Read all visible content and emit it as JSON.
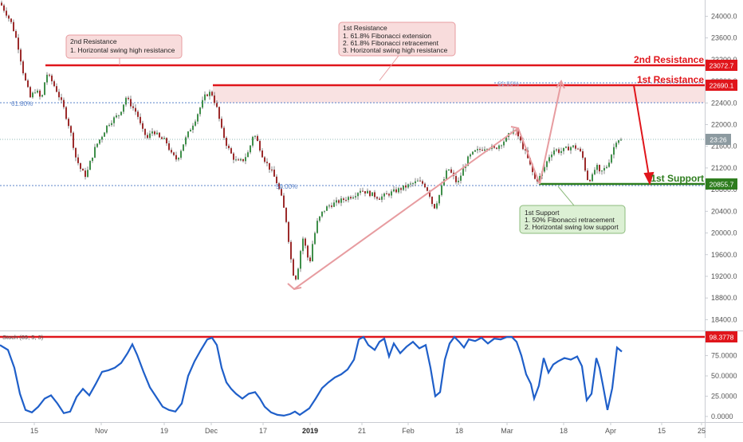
{
  "chart_data": {
    "type": "candlestick",
    "price_axis": {
      "ylim": [
        18200,
        24300
      ],
      "ticks": [
        18400,
        18800,
        19200,
        19600,
        20000,
        20400,
        20800,
        21200,
        21600,
        22000,
        22400,
        22800,
        23200,
        23600,
        24000
      ],
      "tick_labels": [
        "18400.0",
        "18800.0",
        "19200.0",
        "19600.0",
        "20000.0",
        "20400.0",
        "20800.0",
        "21200.0",
        "21600.0",
        "22000.0",
        "22400.0",
        "22800.0",
        "23200.0",
        "23600.0",
        "24000.0"
      ]
    },
    "x_axis": {
      "ticks": [
        {
          "label": "15",
          "bold": false
        },
        {
          "label": "Nov",
          "bold": false
        },
        {
          "label": "19",
          "bold": false
        },
        {
          "label": "Dec",
          "bold": false
        },
        {
          "label": "17",
          "bold": false
        },
        {
          "label": "2019",
          "bold": true
        },
        {
          "label": "21",
          "bold": false
        },
        {
          "label": "Feb",
          "bold": false
        },
        {
          "label": "18",
          "bold": false
        },
        {
          "label": "Mar",
          "bold": false
        },
        {
          "label": "18",
          "bold": false
        },
        {
          "label": "Apr",
          "bold": false
        },
        {
          "label": "15",
          "bold": false
        },
        {
          "label": "25",
          "bold": false
        }
      ]
    },
    "price_path": [
      [
        0,
        24250
      ],
      [
        8,
        24050
      ],
      [
        15,
        23850
      ],
      [
        22,
        23500
      ],
      [
        30,
        22900
      ],
      [
        38,
        22500
      ],
      [
        45,
        22650
      ],
      [
        52,
        22450
      ],
      [
        58,
        22950
      ],
      [
        65,
        22800
      ],
      [
        72,
        22600
      ],
      [
        80,
        22300
      ],
      [
        88,
        21900
      ],
      [
        95,
        21400
      ],
      [
        102,
        21150
      ],
      [
        108,
        21050
      ],
      [
        113,
        21300
      ],
      [
        120,
        21600
      ],
      [
        128,
        21800
      ],
      [
        135,
        22000
      ],
      [
        142,
        22100
      ],
      [
        150,
        22200
      ],
      [
        158,
        22500
      ],
      [
        165,
        22350
      ],
      [
        172,
        22200
      ],
      [
        178,
        21900
      ],
      [
        185,
        21750
      ],
      [
        192,
        21900
      ],
      [
        200,
        21750
      ],
      [
        208,
        21700
      ],
      [
        215,
        21450
      ],
      [
        222,
        21350
      ],
      [
        230,
        21650
      ],
      [
        238,
        21900
      ],
      [
        245,
        22100
      ],
      [
        252,
        22350
      ],
      [
        258,
        22550
      ],
      [
        265,
        22600
      ],
      [
        272,
        22300
      ],
      [
        278,
        21900
      ],
      [
        285,
        21600
      ],
      [
        292,
        21400
      ],
      [
        298,
        21300
      ],
      [
        305,
        21350
      ],
      [
        312,
        21500
      ],
      [
        318,
        21850
      ],
      [
        324,
        21650
      ],
      [
        330,
        21400
      ],
      [
        336,
        21250
      ],
      [
        342,
        21100
      ],
      [
        348,
        20900
      ],
      [
        354,
        20600
      ],
      [
        360,
        20150
      ],
      [
        364,
        19600
      ],
      [
        368,
        19250
      ],
      [
        372,
        19150
      ],
      [
        376,
        19600
      ],
      [
        380,
        19900
      ],
      [
        384,
        19700
      ],
      [
        388,
        19400
      ],
      [
        392,
        19800
      ],
      [
        398,
        20200
      ],
      [
        405,
        20400
      ],
      [
        412,
        20500
      ],
      [
        420,
        20550
      ],
      [
        428,
        20600
      ],
      [
        436,
        20650
      ],
      [
        444,
        20700
      ],
      [
        452,
        20800
      ],
      [
        460,
        20750
      ],
      [
        468,
        20700
      ],
      [
        476,
        20650
      ],
      [
        484,
        20700
      ],
      [
        492,
        20750
      ],
      [
        500,
        20800
      ],
      [
        508,
        20850
      ],
      [
        516,
        20900
      ],
      [
        524,
        20950
      ],
      [
        532,
        20900
      ],
      [
        538,
        20750
      ],
      [
        544,
        20450
      ],
      [
        550,
        20650
      ],
      [
        556,
        20950
      ],
      [
        562,
        21200
      ],
      [
        568,
        21050
      ],
      [
        574,
        20900
      ],
      [
        580,
        21150
      ],
      [
        588,
        21400
      ],
      [
        596,
        21500
      ],
      [
        604,
        21550
      ],
      [
        612,
        21600
      ],
      [
        620,
        21550
      ],
      [
        628,
        21650
      ],
      [
        636,
        21750
      ],
      [
        642,
        21900
      ],
      [
        648,
        21850
      ],
      [
        654,
        21650
      ],
      [
        660,
        21450
      ],
      [
        666,
        21200
      ],
      [
        672,
        20950
      ],
      [
        678,
        21050
      ],
      [
        684,
        21250
      ],
      [
        690,
        21450
      ],
      [
        696,
        21550
      ],
      [
        702,
        21500
      ],
      [
        710,
        21550
      ],
      [
        718,
        21600
      ],
      [
        726,
        21550
      ],
      [
        732,
        21350
      ],
      [
        736,
        21000
      ],
      [
        742,
        21000
      ],
      [
        748,
        21250
      ],
      [
        752,
        21100
      ],
      [
        756,
        21150
      ],
      [
        762,
        21250
      ],
      [
        768,
        21500
      ],
      [
        774,
        21750
      ],
      [
        780,
        21700
      ]
    ],
    "annotations": {
      "second_resistance": {
        "label": "2nd Resistance",
        "price_tag": "23072.7",
        "box": [
          "2nd Resistance",
          "1. Horizontal swing high resistance"
        ]
      },
      "first_resistance": {
        "label": "1st Resistance",
        "price_tag": "22690.1",
        "box": [
          "1st Resistance",
          "1. 61.8% Fibonacci extension",
          "2. 61.8% Fibonacci retracement",
          "3. Horizontal swing high resistance"
        ]
      },
      "first_support": {
        "label": "1st Support",
        "price_tag": "20855.7",
        "box": [
          "1st Support",
          "1. 50% Fibonacci retracement",
          "2. Horizontal swing low support"
        ]
      },
      "fib_labels": [
        "61.80%",
        "61.80%",
        "50.00%"
      ],
      "current_price_tag": "23:26"
    },
    "oscillator": {
      "label": "Stoch (89, 5, 3)",
      "ylim": [
        -5,
        105
      ],
      "ticks": [
        0,
        25,
        50,
        75
      ],
      "tick_labels": [
        "0.0000",
        "25.0000",
        "50.0000",
        "75.0000"
      ],
      "level_tag": "98.3778",
      "series": [
        [
          0,
          88
        ],
        [
          10,
          82
        ],
        [
          18,
          60
        ],
        [
          25,
          28
        ],
        [
          32,
          8
        ],
        [
          40,
          5
        ],
        [
          48,
          12
        ],
        [
          56,
          22
        ],
        [
          64,
          26
        ],
        [
          72,
          16
        ],
        [
          80,
          4
        ],
        [
          88,
          6
        ],
        [
          96,
          24
        ],
        [
          104,
          34
        ],
        [
          112,
          26
        ],
        [
          120,
          40
        ],
        [
          128,
          55
        ],
        [
          136,
          57
        ],
        [
          144,
          60
        ],
        [
          152,
          66
        ],
        [
          160,
          78
        ],
        [
          166,
          89
        ],
        [
          172,
          76
        ],
        [
          180,
          55
        ],
        [
          188,
          36
        ],
        [
          196,
          24
        ],
        [
          204,
          12
        ],
        [
          212,
          8
        ],
        [
          220,
          6
        ],
        [
          228,
          16
        ],
        [
          236,
          50
        ],
        [
          244,
          68
        ],
        [
          252,
          82
        ],
        [
          260,
          95
        ],
        [
          266,
          97
        ],
        [
          272,
          88
        ],
        [
          278,
          60
        ],
        [
          284,
          42
        ],
        [
          290,
          34
        ],
        [
          296,
          28
        ],
        [
          304,
          22
        ],
        [
          312,
          28
        ],
        [
          320,
          30
        ],
        [
          326,
          22
        ],
        [
          332,
          12
        ],
        [
          340,
          5
        ],
        [
          348,
          2
        ],
        [
          356,
          1
        ],
        [
          364,
          3
        ],
        [
          370,
          6
        ],
        [
          376,
          2
        ],
        [
          382,
          6
        ],
        [
          388,
          10
        ],
        [
          396,
          22
        ],
        [
          404,
          35
        ],
        [
          412,
          42
        ],
        [
          420,
          48
        ],
        [
          428,
          52
        ],
        [
          436,
          58
        ],
        [
          444,
          70
        ],
        [
          450,
          95
        ],
        [
          456,
          98
        ],
        [
          462,
          88
        ],
        [
          470,
          82
        ],
        [
          476,
          92
        ],
        [
          482,
          96
        ],
        [
          488,
          74
        ],
        [
          494,
          90
        ],
        [
          502,
          78
        ],
        [
          510,
          86
        ],
        [
          518,
          92
        ],
        [
          526,
          84
        ],
        [
          534,
          88
        ],
        [
          540,
          60
        ],
        [
          546,
          25
        ],
        [
          552,
          30
        ],
        [
          558,
          70
        ],
        [
          564,
          90
        ],
        [
          570,
          98
        ],
        [
          576,
          92
        ],
        [
          582,
          85
        ],
        [
          588,
          95
        ],
        [
          596,
          93
        ],
        [
          604,
          97
        ],
        [
          612,
          90
        ],
        [
          620,
          96
        ],
        [
          628,
          95
        ],
        [
          636,
          98
        ],
        [
          642,
          98
        ],
        [
          648,
          92
        ],
        [
          654,
          75
        ],
        [
          660,
          52
        ],
        [
          666,
          40
        ],
        [
          670,
          22
        ],
        [
          676,
          38
        ],
        [
          682,
          72
        ],
        [
          688,
          54
        ],
        [
          694,
          64
        ],
        [
          700,
          68
        ],
        [
          708,
          72
        ],
        [
          716,
          70
        ],
        [
          724,
          74
        ],
        [
          730,
          62
        ],
        [
          736,
          20
        ],
        [
          742,
          28
        ],
        [
          748,
          72
        ],
        [
          752,
          60
        ],
        [
          756,
          40
        ],
        [
          762,
          8
        ],
        [
          768,
          35
        ],
        [
          774,
          85
        ],
        [
          780,
          80
        ]
      ]
    }
  }
}
